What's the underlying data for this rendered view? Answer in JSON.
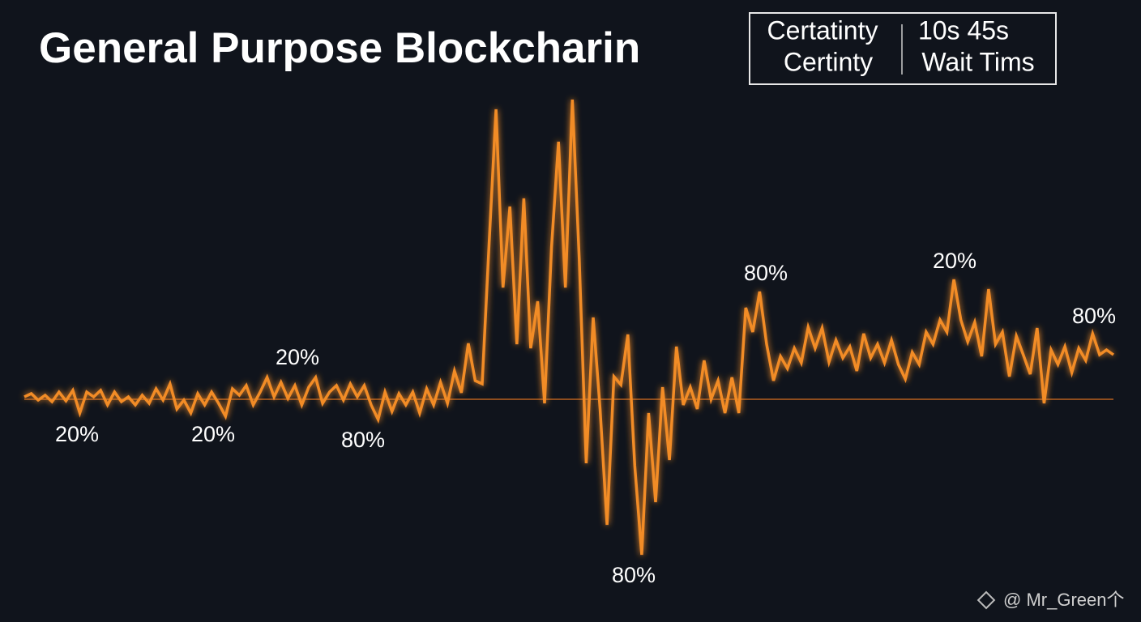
{
  "chart_data": {
    "type": "line",
    "title": "General Purpose Blockcharin",
    "legend_box": {
      "left": [
        "Certatinty",
        "Certinty"
      ],
      "right": [
        "10s 45s",
        "Wait Tims"
      ]
    },
    "annotations": [
      "20%",
      "20%",
      "20%",
      "80%",
      "80%",
      "80%",
      "20%",
      "80%"
    ],
    "watermark": "@ Mr_Green个",
    "color": "#f28c28",
    "ylim": [
      -220,
      400
    ],
    "values": [
      3,
      7,
      -1,
      5,
      -3,
      9,
      -2,
      11,
      -17,
      9,
      3,
      11,
      -7,
      9,
      -3,
      3,
      -7,
      5,
      -5,
      13,
      -1,
      19,
      -12,
      -1,
      -17,
      7,
      -7,
      9,
      -5,
      -21,
      13,
      5,
      17,
      -7,
      9,
      27,
      3,
      21,
      1,
      17,
      -7,
      15,
      27,
      -5,
      9,
      17,
      -1,
      19,
      3,
      17,
      -7,
      -25,
      9,
      -15,
      7,
      -7,
      9,
      -17,
      13,
      -7,
      21,
      -5,
      35,
      8,
      69,
      23,
      19,
      193,
      358,
      138,
      238,
      68,
      248,
      63,
      121,
      -5,
      188,
      318,
      138,
      370,
      173,
      -79,
      101,
      -12,
      -155,
      28,
      18,
      80,
      -82,
      -192,
      -17,
      -127,
      15,
      -75,
      65,
      -7,
      15,
      -12,
      48,
      0,
      23,
      -17,
      27,
      -17,
      113,
      83,
      133,
      68,
      23,
      53,
      38,
      63,
      45,
      89,
      63,
      88,
      46,
      73,
      51,
      65,
      35,
      81,
      51,
      68,
      45,
      73,
      43,
      25,
      58,
      43,
      83,
      68,
      98,
      83,
      148,
      98,
      71,
      95,
      53,
      136,
      68,
      83,
      28,
      78,
      55,
      31,
      88,
      -5,
      61,
      43,
      65,
      33,
      63,
      48,
      81,
      55,
      61,
      55
    ]
  }
}
